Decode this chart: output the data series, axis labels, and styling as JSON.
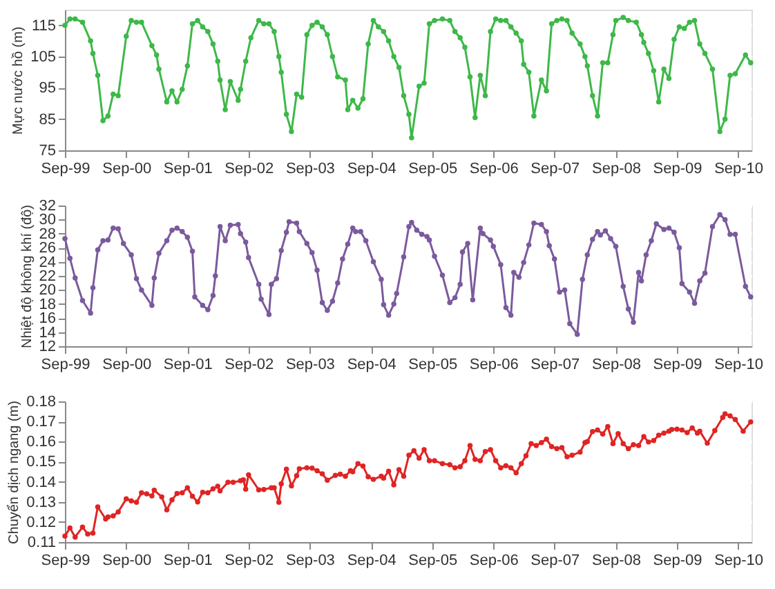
{
  "chart_data": [
    {
      "type": "line",
      "ylabel": "Mực nước hồ (m)",
      "xlim": [
        "1999-09-01",
        "2010-11-20"
      ],
      "ylim": [
        75,
        120
      ],
      "yticks": [
        75,
        85,
        95,
        105,
        115
      ],
      "grid": "y",
      "marker": "circle",
      "xticks": [
        {
          "value": "1999-09-01",
          "label": "Sep-99"
        },
        {
          "value": "2000-09-01",
          "label": "Sep-00"
        },
        {
          "value": "2001-09-01",
          "label": "Sep-01"
        },
        {
          "value": "2002-09-01",
          "label": "Sep-02"
        },
        {
          "value": "2003-09-01",
          "label": "Sep-03"
        },
        {
          "value": "2004-09-01",
          "label": "Sep-04"
        },
        {
          "value": "2005-09-01",
          "label": "Sep-05"
        },
        {
          "value": "2006-09-01",
          "label": "Sep-06"
        },
        {
          "value": "2007-09-01",
          "label": "Sep-07"
        },
        {
          "value": "2008-09-01",
          "label": "Sep-08"
        },
        {
          "value": "2009-09-01",
          "label": "Sep-09"
        },
        {
          "value": "2010-09-01",
          "label": "Sep-10"
        }
      ],
      "series": [
        {
          "color": "#3db849",
          "x": [
            "1999-09-01",
            "1999-10-01",
            "1999-11-01",
            "1999-12-15",
            "2000-02-01",
            "2000-02-15",
            "2000-03-15",
            "2000-04-15",
            "2000-05-15",
            "2000-06-15",
            "2000-07-15",
            "2000-09-01",
            "2000-10-01",
            "2000-11-01",
            "2000-12-01",
            "2001-02-01",
            "2001-03-01",
            "2001-03-15",
            "2001-05-01",
            "2001-06-01",
            "2001-07-01",
            "2001-08-01",
            "2001-09-01",
            "2001-10-01",
            "2001-11-01",
            "2001-12-01",
            "2002-01-01",
            "2002-02-01",
            "2002-03-01",
            "2002-03-15",
            "2002-04-15",
            "2002-05-15",
            "2002-07-01",
            "2002-07-15",
            "2002-08-15",
            "2002-09-15",
            "2002-11-01",
            "2002-12-01",
            "2003-01-01",
            "2003-02-01",
            "2003-03-01",
            "2003-03-15",
            "2003-04-15",
            "2003-05-15",
            "2003-06-15",
            "2003-07-15",
            "2003-08-15",
            "2003-09-15",
            "2003-10-15",
            "2003-11-15",
            "2003-12-15",
            "2004-01-15",
            "2004-02-15",
            "2004-04-01",
            "2004-04-15",
            "2004-05-15",
            "2004-06-15",
            "2004-07-15",
            "2004-08-15",
            "2004-09-15",
            "2004-10-15",
            "2004-11-15",
            "2004-12-15",
            "2005-01-15",
            "2005-02-15",
            "2005-03-15",
            "2005-04-15",
            "2005-05-01",
            "2005-06-15",
            "2005-07-15",
            "2005-08-15",
            "2005-09-15",
            "2005-11-01",
            "2005-12-15",
            "2006-01-15",
            "2006-02-15",
            "2006-03-15",
            "2006-04-15",
            "2006-05-15",
            "2006-06-15",
            "2006-07-15",
            "2006-08-15",
            "2006-09-15",
            "2006-10-15",
            "2006-11-15",
            "2006-12-15",
            "2007-01-15",
            "2007-02-15",
            "2007-03-01",
            "2007-04-01",
            "2007-05-01",
            "2007-06-15",
            "2007-07-15",
            "2007-08-15",
            "2007-09-15",
            "2007-10-15",
            "2007-11-15",
            "2007-12-15",
            "2008-02-01",
            "2008-03-01",
            "2008-03-15",
            "2008-04-15",
            "2008-05-15",
            "2008-06-15",
            "2008-07-15",
            "2008-08-15",
            "2008-09-01",
            "2008-10-15",
            "2008-11-15",
            "2009-01-01",
            "2009-02-01",
            "2009-02-15",
            "2009-03-15",
            "2009-04-15",
            "2009-05-15",
            "2009-06-15",
            "2009-07-15",
            "2009-08-15",
            "2009-09-15",
            "2009-10-15",
            "2009-11-15",
            "2009-12-15",
            "2010-01-15",
            "2010-02-15",
            "2010-04-01",
            "2010-05-15",
            "2010-06-15",
            "2010-07-15",
            "2010-08-15",
            "2010-10-15",
            "2010-11-15"
          ],
          "values": [
            115,
            117,
            117,
            116,
            110,
            106,
            99,
            84.5,
            86,
            93,
            92.5,
            111.5,
            116.5,
            116,
            116,
            108.5,
            105.5,
            101,
            90.5,
            94,
            90.5,
            94.5,
            102,
            115.5,
            116.5,
            114.5,
            113,
            109,
            103.5,
            97.5,
            88,
            97,
            91,
            94.5,
            103.5,
            111,
            116.5,
            115.5,
            115.5,
            113,
            105,
            100,
            86.5,
            81,
            93,
            92,
            112,
            115,
            116,
            114.5,
            112,
            105,
            98.5,
            97.5,
            88,
            91,
            88.5,
            91.5,
            109,
            116.5,
            114.5,
            113,
            110,
            105,
            101.5,
            92.5,
            86.5,
            79,
            95.5,
            96.5,
            115.5,
            116.5,
            117,
            116.5,
            113,
            111,
            108,
            98.5,
            85.5,
            99,
            92.5,
            113,
            117,
            116.5,
            116.5,
            114.5,
            112.5,
            110,
            102.5,
            100,
            86,
            97.5,
            94,
            115.5,
            116.5,
            117,
            116.5,
            112.5,
            109,
            105,
            102,
            92.5,
            86,
            103,
            103,
            112,
            116.5,
            117.5,
            116.5,
            116,
            112,
            109.5,
            106,
            100.5,
            90.5,
            101,
            98,
            110.5,
            114.5,
            114,
            116,
            116.5,
            109,
            106,
            101,
            81,
            85,
            99,
            99.5,
            105.5,
            103
          ]
        }
      ]
    },
    {
      "type": "line",
      "ylabel": "Nhiệt độ không khí (độ)",
      "xlim": [
        "1999-09-01",
        "2010-11-20"
      ],
      "ylim": [
        12,
        32
      ],
      "yticks": [
        12,
        14,
        16,
        18,
        20,
        22,
        24,
        26,
        28,
        30,
        32
      ],
      "grid": "y",
      "marker": "circle",
      "xticks": [
        {
          "value": "1999-09-01",
          "label": "Sep-99"
        },
        {
          "value": "2000-09-01",
          "label": "Sep-00"
        },
        {
          "value": "2001-09-01",
          "label": "Sep-01"
        },
        {
          "value": "2002-09-01",
          "label": "Sep-02"
        },
        {
          "value": "2003-09-01",
          "label": "Sep-03"
        },
        {
          "value": "2004-09-01",
          "label": "Sep-04"
        },
        {
          "value": "2005-09-01",
          "label": "Sep-05"
        },
        {
          "value": "2006-09-01",
          "label": "Sep-06"
        },
        {
          "value": "2007-09-01",
          "label": "Sep-07"
        },
        {
          "value": "2008-09-01",
          "label": "Sep-08"
        },
        {
          "value": "2009-09-01",
          "label": "Sep-09"
        },
        {
          "value": "2010-09-01",
          "label": "Sep-10"
        }
      ],
      "series": [
        {
          "color": "#7a5a9c",
          "x": [
            "1999-09-01",
            "1999-10-01",
            "1999-11-01",
            "1999-12-15",
            "2000-02-01",
            "2000-02-15",
            "2000-03-15",
            "2000-04-15",
            "2000-05-15",
            "2000-06-15",
            "2000-07-15",
            "2000-08-15",
            "2000-10-01",
            "2000-11-01",
            "2000-12-01",
            "2001-02-01",
            "2001-02-15",
            "2001-03-15",
            "2001-05-01",
            "2001-06-01",
            "2001-07-01",
            "2001-08-01",
            "2001-09-01",
            "2001-10-01",
            "2001-10-15",
            "2001-12-01",
            "2002-01-01",
            "2002-02-01",
            "2002-02-15",
            "2002-03-15",
            "2002-04-15",
            "2002-05-15",
            "2002-07-01",
            "2002-07-15",
            "2002-08-15",
            "2002-09-01",
            "2002-11-01",
            "2002-11-15",
            "2003-01-01",
            "2003-01-15",
            "2003-02-15",
            "2003-03-15",
            "2003-04-15",
            "2003-05-01",
            "2003-06-15",
            "2003-07-01",
            "2003-08-15",
            "2003-09-15",
            "2003-10-15",
            "2003-11-15",
            "2003-12-15",
            "2004-01-15",
            "2004-02-15",
            "2004-03-15",
            "2004-04-15",
            "2004-05-15",
            "2004-06-01",
            "2004-07-01",
            "2004-08-01",
            "2004-09-15",
            "2004-11-01",
            "2004-11-15",
            "2004-12-15",
            "2005-01-15",
            "2005-02-01",
            "2005-03-15",
            "2005-04-15",
            "2005-05-01",
            "2005-06-01",
            "2005-07-01",
            "2005-08-01",
            "2005-08-15",
            "2005-09-15",
            "2005-11-01",
            "2005-12-15",
            "2006-01-15",
            "2006-02-15",
            "2006-03-01",
            "2006-04-01",
            "2006-05-01",
            "2006-06-15",
            "2006-07-01",
            "2006-08-15",
            "2006-09-01",
            "2006-10-15",
            "2006-11-15",
            "2006-12-15",
            "2007-01-01",
            "2007-02-01",
            "2007-03-01",
            "2007-04-01",
            "2007-05-01",
            "2007-06-15",
            "2007-07-15",
            "2007-08-01",
            "2007-09-01",
            "2007-10-01",
            "2007-11-01",
            "2007-12-01",
            "2008-01-15",
            "2008-02-15",
            "2008-03-15",
            "2008-04-15",
            "2008-05-15",
            "2008-06-01",
            "2008-07-01",
            "2008-08-01",
            "2008-09-01",
            "2008-10-15",
            "2008-11-15",
            "2008-12-15",
            "2009-01-15",
            "2009-02-01",
            "2009-03-01",
            "2009-04-01",
            "2009-05-01",
            "2009-06-15",
            "2009-07-15",
            "2009-08-15",
            "2009-09-15",
            "2009-10-01",
            "2009-11-15",
            "2009-12-15",
            "2010-01-15",
            "2010-02-15",
            "2010-04-01",
            "2010-05-15",
            "2010-06-15",
            "2010-07-15",
            "2010-08-15",
            "2010-10-15",
            "2010-11-15"
          ],
          "values": [
            27.3,
            24.5,
            21.7,
            18.5,
            16.7,
            20.3,
            25.7,
            27,
            27.1,
            28.8,
            28.7,
            26.6,
            25,
            21.6,
            20,
            17.8,
            21.7,
            25.2,
            27,
            28.5,
            28.8,
            28.3,
            27.5,
            25.5,
            19,
            17.8,
            17.2,
            19.2,
            22,
            29,
            27,
            29.2,
            29.3,
            28,
            26.8,
            24.6,
            20.8,
            18.7,
            16.5,
            20.8,
            21.6,
            25.6,
            28.2,
            29.7,
            29.5,
            28.3,
            26.6,
            25.3,
            22.8,
            18.2,
            17.1,
            18.4,
            21,
            24.4,
            26.5,
            28.8,
            28.3,
            28.3,
            27,
            24,
            21.5,
            17.9,
            16.4,
            18,
            19.5,
            24.7,
            29,
            29.6,
            28.5,
            27.9,
            27.6,
            27.1,
            24.8,
            22.1,
            18.2,
            18.9,
            20.8,
            25.4,
            26.6,
            18.6,
            28.8,
            28,
            27.1,
            26.2,
            23.6,
            17.5,
            16.4,
            22.5,
            21.8,
            23.9,
            26.4,
            29.5,
            29.3,
            28.3,
            26.3,
            24.4,
            19.7,
            20,
            15.2,
            13.7,
            21.5,
            25,
            27.2,
            28.3,
            27.8,
            28.4,
            27.3,
            26.2,
            20.5,
            17.3,
            15.4,
            22.5,
            21.3,
            25,
            27,
            29.4,
            28.6,
            28.8,
            28.2,
            26,
            20.9,
            19.7,
            18.1,
            21.3,
            22.4,
            29,
            30.7,
            30,
            27.9,
            27.9,
            20.5,
            19
          ]
        }
      ]
    },
    {
      "type": "line",
      "ylabel": "Chuyển dịch ngang (m)",
      "xlim": [
        "1999-09-01",
        "2010-11-20"
      ],
      "ylim": [
        0.11,
        0.18
      ],
      "yticks": [
        0.11,
        0.12,
        0.13,
        0.14,
        0.15,
        0.16,
        0.17,
        0.18
      ],
      "grid": "y",
      "marker": "circle",
      "xticks": [
        {
          "value": "1999-09-01",
          "label": "Sep-99"
        },
        {
          "value": "2000-09-01",
          "label": "Sep-00"
        },
        {
          "value": "2001-09-01",
          "label": "Sep-01"
        },
        {
          "value": "2002-09-01",
          "label": "Sep-02"
        },
        {
          "value": "2003-09-01",
          "label": "Sep-03"
        },
        {
          "value": "2004-09-01",
          "label": "Sep-04"
        },
        {
          "value": "2005-09-01",
          "label": "Sep-05"
        },
        {
          "value": "2006-09-01",
          "label": "Sep-06"
        },
        {
          "value": "2007-09-01",
          "label": "Sep-07"
        },
        {
          "value": "2008-09-01",
          "label": "Sep-08"
        },
        {
          "value": "2009-09-01",
          "label": "Sep-09"
        },
        {
          "value": "2010-09-01",
          "label": "Sep-10"
        }
      ],
      "series": [
        {
          "color": "#e02424",
          "x": [
            "1999-09-01",
            "1999-10-01",
            "1999-11-01",
            "1999-12-15",
            "2000-01-15",
            "2000-02-15",
            "2000-03-15",
            "2000-05-01",
            "2000-05-15",
            "2000-06-15",
            "2000-07-15",
            "2000-09-01",
            "2000-10-01",
            "2000-11-01",
            "2000-12-01",
            "2001-01-01",
            "2001-02-01",
            "2001-02-15",
            "2001-04-01",
            "2001-05-01",
            "2001-06-01",
            "2001-07-01",
            "2001-08-01",
            "2001-09-01",
            "2001-10-01",
            "2001-11-01",
            "2001-12-01",
            "2002-01-01",
            "2002-02-01",
            "2002-03-01",
            "2002-03-15",
            "2002-05-01",
            "2002-06-01",
            "2002-07-15",
            "2002-08-01",
            "2002-08-15",
            "2002-09-01",
            "2002-11-01",
            "2002-12-01",
            "2003-01-15",
            "2003-02-01",
            "2003-03-01",
            "2003-03-15",
            "2003-04-15",
            "2003-05-15",
            "2003-06-15",
            "2003-07-01",
            "2003-08-15",
            "2003-09-15",
            "2003-10-15",
            "2003-11-15",
            "2003-12-15",
            "2004-02-01",
            "2004-03-01",
            "2004-04-01",
            "2004-05-01",
            "2004-05-15",
            "2004-06-15",
            "2004-07-15",
            "2004-08-15",
            "2004-09-15",
            "2004-11-01",
            "2004-11-15",
            "2004-12-15",
            "2005-01-15",
            "2005-02-15",
            "2005-03-15",
            "2005-04-15",
            "2005-05-15",
            "2005-06-15",
            "2005-07-15",
            "2005-08-15",
            "2005-09-15",
            "2005-11-01",
            "2005-12-15",
            "2006-01-15",
            "2006-02-15",
            "2006-03-15",
            "2006-04-15",
            "2006-05-15",
            "2006-06-15",
            "2006-07-15",
            "2006-08-15",
            "2006-09-15",
            "2006-10-15",
            "2006-11-15",
            "2006-12-15",
            "2007-01-15",
            "2007-02-15",
            "2007-03-15",
            "2007-04-15",
            "2007-05-15",
            "2007-06-15",
            "2007-07-15",
            "2007-08-15",
            "2007-09-15",
            "2007-10-15",
            "2007-11-15",
            "2007-12-15",
            "2008-02-01",
            "2008-03-01",
            "2008-03-15",
            "2008-04-15",
            "2008-05-15",
            "2008-06-15",
            "2008-07-15",
            "2008-08-15",
            "2008-09-15",
            "2008-10-15",
            "2008-11-15",
            "2008-12-15",
            "2009-01-15",
            "2009-02-15",
            "2009-03-15",
            "2009-04-15",
            "2009-05-15",
            "2009-06-15",
            "2009-07-15",
            "2009-08-01",
            "2009-09-01",
            "2009-10-01",
            "2009-11-01",
            "2009-12-01",
            "2010-01-01",
            "2010-01-15",
            "2010-03-01",
            "2010-04-15",
            "2010-06-01",
            "2010-06-15",
            "2010-07-15",
            "2010-08-15",
            "2010-10-01",
            "2010-11-15"
          ],
          "values": [
            0.113,
            0.117,
            0.1125,
            0.1175,
            0.114,
            0.1145,
            0.1275,
            0.1215,
            0.1225,
            0.123,
            0.125,
            0.1315,
            0.1305,
            0.1298,
            0.1345,
            0.134,
            0.133,
            0.1358,
            0.1325,
            0.126,
            0.131,
            0.1342,
            0.1345,
            0.137,
            0.1328,
            0.13,
            0.1348,
            0.1345,
            0.1365,
            0.1378,
            0.1355,
            0.1398,
            0.1398,
            0.1405,
            0.141,
            0.1363,
            0.1435,
            0.136,
            0.1362,
            0.137,
            0.137,
            0.1298,
            0.139,
            0.1463,
            0.138,
            0.143,
            0.1465,
            0.147,
            0.1468,
            0.1455,
            0.144,
            0.1408,
            0.1432,
            0.1438,
            0.1428,
            0.1455,
            0.145,
            0.149,
            0.1478,
            0.1425,
            0.1412,
            0.1428,
            0.1418,
            0.1453,
            0.1385,
            0.146,
            0.1428,
            0.1532,
            0.1555,
            0.1518,
            0.156,
            0.1505,
            0.1505,
            0.149,
            0.1485,
            0.147,
            0.1475,
            0.1505,
            0.158,
            0.1512,
            0.1505,
            0.155,
            0.156,
            0.1505,
            0.147,
            0.148,
            0.147,
            0.1445,
            0.149,
            0.153,
            0.159,
            0.158,
            0.1595,
            0.1612,
            0.1575,
            0.1565,
            0.157,
            0.1525,
            0.1532,
            0.1548,
            0.1595,
            0.16,
            0.165,
            0.1658,
            0.1638,
            0.1675,
            0.159,
            0.164,
            0.159,
            0.1565,
            0.1585,
            0.158,
            0.1625,
            0.1598,
            0.1605,
            0.1632,
            0.1642,
            0.1652,
            0.166,
            0.1662,
            0.1658,
            0.1645,
            0.1668,
            0.1642,
            0.1652,
            0.1592,
            0.1655,
            0.172,
            0.1738,
            0.1728,
            0.171,
            0.1652,
            0.1698
          ]
        }
      ]
    }
  ]
}
